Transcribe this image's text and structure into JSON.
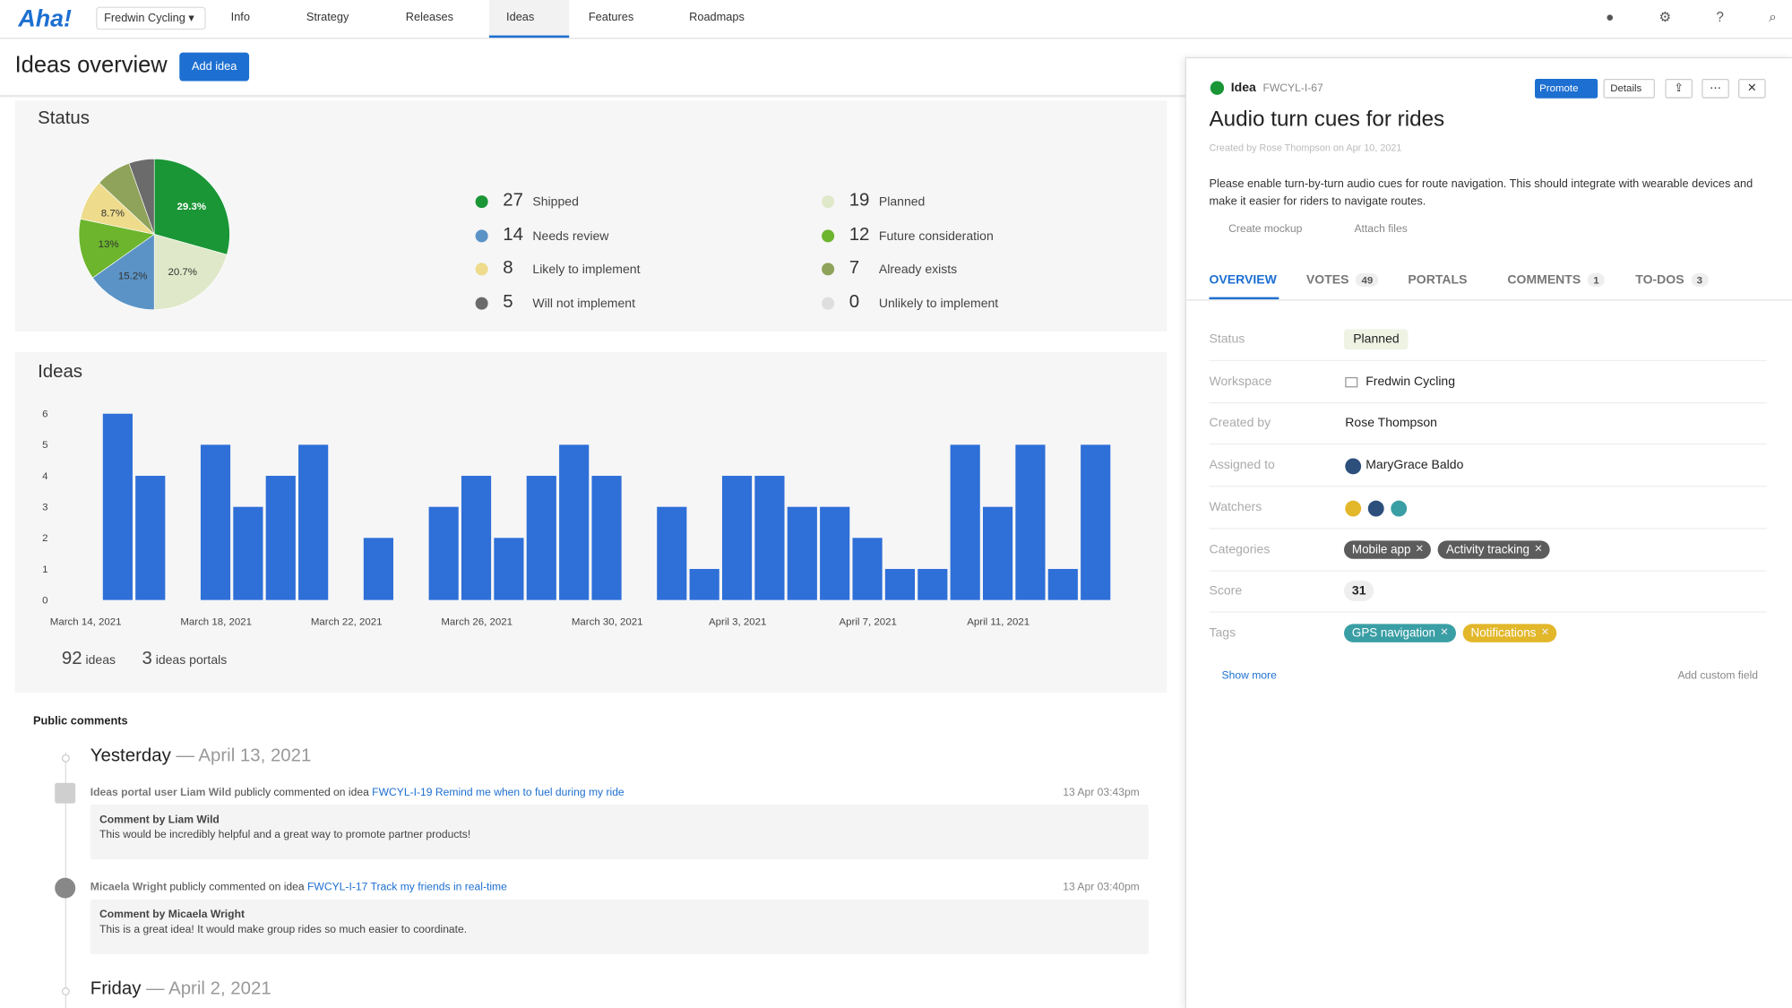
{
  "nav": {
    "logo": "Aha!",
    "workspace": "Fredwin Cycling",
    "tabs": [
      "Info",
      "Strategy",
      "Releases",
      "Ideas",
      "Features",
      "Roadmaps"
    ],
    "active": "Ideas"
  },
  "header": {
    "title": "Ideas overview",
    "button": "Add idea"
  },
  "chart_data": [
    {
      "type": "pie",
      "title": "Status",
      "categories": [
        "Shipped",
        "Planned",
        "Needs review",
        "Future consideration",
        "Likely to implement",
        "Already exists",
        "Will not implement",
        "Unlikely to implement"
      ],
      "values": [
        27,
        19,
        14,
        12,
        8,
        7,
        5,
        0
      ],
      "value_labels": [
        "29.3%",
        "20.7%",
        "15.2%",
        "13%",
        "8.7%",
        null,
        null,
        null
      ],
      "colors": [
        "#1a9636",
        "#dfe8c8",
        "#5b93c6",
        "#6cb52d",
        "#eedb8c",
        "#8fa35a",
        "#6b6b6b",
        "#dedede"
      ]
    },
    {
      "type": "bar",
      "title": "Ideas",
      "categories": [
        "March 14, 2021",
        null,
        null,
        null,
        "March 18, 2021",
        null,
        null,
        null,
        "March 22, 2021",
        null,
        null,
        null,
        "March 26, 2021",
        null,
        null,
        null,
        "March 30, 2021",
        null,
        null,
        null,
        "April 3, 2021",
        null,
        null,
        null,
        "April 7, 2021",
        null,
        null,
        null,
        "April 11, 2021",
        null,
        null
      ],
      "values": [
        6,
        4,
        0,
        5,
        3,
        4,
        5,
        0,
        2,
        0,
        3,
        4,
        2,
        4,
        5,
        4,
        0,
        3,
        1,
        4,
        4,
        3,
        3,
        2,
        1,
        1,
        5,
        3,
        5,
        1,
        5
      ],
      "color": "#2e6fd8",
      "ylim": [
        0,
        6
      ],
      "yticks": [
        0,
        1,
        2,
        3,
        4,
        5,
        6
      ],
      "grid": false
    }
  ],
  "summary": {
    "ideas_count": 92,
    "ideas_label": "ideas",
    "portals_count": 3,
    "portals_label": "ideas portals"
  },
  "comments": {
    "title": "Public comments",
    "groups": [
      {
        "day": "Yesterday",
        "date": "— April 13, 2021",
        "entries": [
          {
            "user": "Ideas portal user Liam Wild",
            "action": "publicly commented on idea",
            "link": "FWCYL-I-19 Remind me when to fuel during my ride",
            "time": "13 Apr 03:43pm",
            "comment_title": "Comment by Liam Wild",
            "comment_text": "This would be incredibly helpful and a great way to promote partner products!"
          },
          {
            "user": "Micaela Wright",
            "action": "publicly commented on idea",
            "link": "FWCYL-I-17 Track my friends in real-time",
            "time": "13 Apr 03:40pm",
            "comment_title": "Comment by Micaela Wright",
            "comment_text": "This is a great idea! It would make group rides so much easier to coordinate."
          }
        ]
      },
      {
        "day": "Friday",
        "date": "— April 2, 2021",
        "entries": []
      }
    ]
  },
  "detail": {
    "kind": "Idea",
    "id": "FWCYL-I-67",
    "promote": "Promote",
    "details": "Details",
    "title": "Audio turn cues for rides",
    "created": "Created by Rose Thompson on Apr 10, 2021",
    "description": "Please enable turn-by-turn audio cues for route navigation. This should integrate with wearable devices and make it easier for riders to navigate routes.",
    "actions": [
      "Create mockup",
      "Attach files"
    ],
    "tabs": [
      {
        "label": "OVERVIEW"
      },
      {
        "label": "VOTES",
        "count": 49
      },
      {
        "label": "PORTALS"
      },
      {
        "label": "COMMENTS",
        "count": 1
      },
      {
        "label": "TO-DOS",
        "count": 3
      }
    ],
    "fields": [
      {
        "label": "Status",
        "value": "Planned"
      },
      {
        "label": "Workspace",
        "value": "Fredwin Cycling"
      },
      {
        "label": "Created by",
        "value": "Rose Thompson"
      },
      {
        "label": "Assigned to",
        "value": "MaryGrace Baldo"
      },
      {
        "label": "Watchers"
      },
      {
        "label": "Categories",
        "chips": [
          {
            "text": "Mobile app",
            "color": "#5c5c5c"
          },
          {
            "text": "Activity tracking",
            "color": "#5c5c5c"
          }
        ]
      },
      {
        "label": "Score",
        "value": 31
      },
      {
        "label": "Tags",
        "chips": [
          {
            "text": "GPS navigation",
            "color": "#3a9ea5"
          },
          {
            "text": "Notifications",
            "color": "#e2b72a"
          }
        ]
      }
    ],
    "show_more": "Show more",
    "add_field": "Add custom field"
  }
}
